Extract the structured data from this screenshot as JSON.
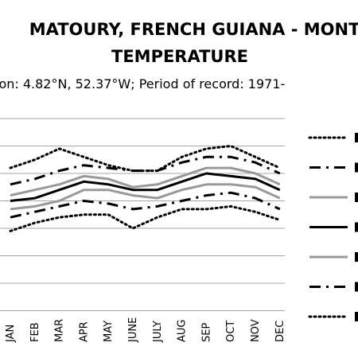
{
  "chart_data": {
    "type": "line",
    "title_lines": [
      "MATOURY, FRENCH GUIANA - MONTHLY",
      "TEMPERATURE"
    ],
    "subtitle": "ion: 4.82°N, 52.37°W; Period of record: 1971-",
    "categories": [
      "JAN",
      "FEB",
      "MAR",
      "APR",
      "MAY",
      "JUNE",
      "JULY",
      "AUG",
      "SEP",
      "OCT",
      "NOV",
      "DEC"
    ],
    "ylim": [
      0,
      7
    ],
    "grid": true,
    "legend_position": "right",
    "series": [
      {
        "values": [
          5.2,
          5.5,
          5.9,
          5.6,
          5.3,
          5.1,
          5.1,
          5.6,
          5.9,
          6.0,
          5.6,
          5.2
        ],
        "line_style": "dotted",
        "color": "#000000"
      },
      {
        "values": [
          4.6,
          4.8,
          5.1,
          5.3,
          5.2,
          5.1,
          5.1,
          5.4,
          5.6,
          5.6,
          5.4,
          5.0
        ],
        "line_style": "dash-dot",
        "color": "#000000"
      },
      {
        "values": [
          4.2,
          4.4,
          4.6,
          4.9,
          4.8,
          4.5,
          4.6,
          4.9,
          5.2,
          5.2,
          5.0,
          4.6
        ],
        "line_style": "solid",
        "color": "#999999"
      },
      {
        "values": [
          4.0,
          4.1,
          4.4,
          4.7,
          4.6,
          4.4,
          4.4,
          4.7,
          5.0,
          4.9,
          4.8,
          4.4
        ],
        "line_style": "solid",
        "color": "#000000"
      },
      {
        "values": [
          3.7,
          3.8,
          4.0,
          4.4,
          4.4,
          4.2,
          4.1,
          4.4,
          4.6,
          4.6,
          4.5,
          4.1
        ],
        "line_style": "solid",
        "color": "#999999"
      },
      {
        "values": [
          3.4,
          3.6,
          3.8,
          4.0,
          3.9,
          3.7,
          3.8,
          4.0,
          4.2,
          4.3,
          4.1,
          3.7
        ],
        "line_style": "dash-dot",
        "color": "#000000"
      },
      {
        "values": [
          2.9,
          3.2,
          3.4,
          3.5,
          3.5,
          3.0,
          3.4,
          3.7,
          3.7,
          3.8,
          3.6,
          3.3
        ],
        "line_style": "dotted",
        "color": "#000000"
      }
    ]
  }
}
